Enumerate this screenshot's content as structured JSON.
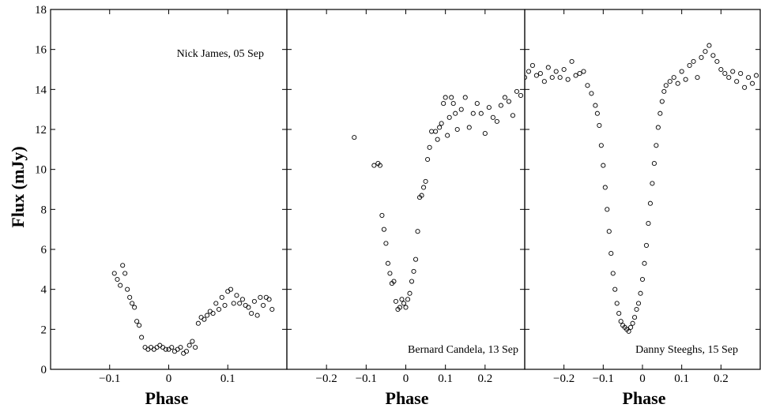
{
  "figure": {
    "ylabel": "Flux (mJy)",
    "xlabel": "Phase"
  },
  "chart_data": [
    {
      "type": "scatter",
      "title": "",
      "annotation": "Nick James, 05 Sep",
      "xlabel": "Phase",
      "ylabel": "Flux (mJy)",
      "xlim": [
        -0.2,
        0.2
      ],
      "ylim": [
        0,
        18
      ],
      "xticks": [
        -0.1,
        0,
        0.1
      ],
      "xtick_labels": [
        "−0.1",
        "0",
        "0.1"
      ],
      "yticks": [
        0,
        2,
        4,
        6,
        8,
        10,
        12,
        14,
        16,
        18
      ],
      "ytick_labels": [
        "0",
        "2",
        "4",
        "6",
        "8",
        "10",
        "12",
        "14",
        "16",
        "18"
      ],
      "marker": "open-circle",
      "series": [
        {
          "x": [
            -0.092,
            -0.087,
            -0.082,
            -0.078,
            -0.074,
            -0.07,
            -0.066,
            -0.062,
            -0.058,
            -0.054,
            -0.05,
            -0.046,
            -0.04,
            -0.035,
            -0.03,
            -0.025,
            -0.02,
            -0.015,
            -0.01,
            -0.005,
            0.0,
            0.005,
            0.01,
            0.015,
            0.02,
            0.025,
            0.03,
            0.035,
            0.04,
            0.045,
            0.05,
            0.055,
            0.06,
            0.065,
            0.07,
            0.075,
            0.08,
            0.085,
            0.09,
            0.095,
            0.1,
            0.105,
            0.11,
            0.115,
            0.12,
            0.125,
            0.13,
            0.135,
            0.14,
            0.145,
            0.15,
            0.155,
            0.16,
            0.165,
            0.17,
            0.175
          ],
          "y": [
            4.8,
            4.5,
            4.2,
            5.2,
            4.8,
            4.0,
            3.6,
            3.3,
            3.1,
            2.4,
            2.2,
            1.6,
            1.1,
            1.0,
            1.1,
            1.0,
            1.1,
            1.2,
            1.1,
            1.0,
            1.0,
            1.1,
            0.9,
            1.0,
            1.1,
            0.8,
            0.9,
            1.2,
            1.4,
            1.1,
            2.3,
            2.6,
            2.5,
            2.7,
            2.9,
            2.8,
            3.3,
            3.0,
            3.6,
            3.2,
            3.9,
            4.0,
            3.3,
            3.7,
            3.3,
            3.5,
            3.2,
            3.1,
            2.8,
            3.4,
            2.7,
            3.6,
            3.2,
            3.6,
            3.5,
            3.0
          ]
        }
      ]
    },
    {
      "type": "scatter",
      "title": "",
      "annotation": "Bernard Candela, 13 Sep",
      "xlabel": "Phase",
      "xlim": [
        -0.3,
        0.3
      ],
      "ylim": [
        0,
        18
      ],
      "xticks": [
        -0.2,
        -0.1,
        0,
        0.1,
        0.2
      ],
      "xtick_labels": [
        "−0.2",
        "−0.1",
        "0",
        "0.1",
        "0.2"
      ],
      "marker": "open-circle",
      "series": [
        {
          "x": [
            -0.13,
            -0.08,
            -0.07,
            -0.065,
            -0.06,
            -0.055,
            -0.05,
            -0.045,
            -0.04,
            -0.035,
            -0.03,
            -0.025,
            -0.02,
            -0.015,
            -0.01,
            -0.005,
            0.0,
            0.005,
            0.01,
            0.015,
            0.02,
            0.025,
            0.03,
            0.035,
            0.04,
            0.045,
            0.05,
            0.055,
            0.06,
            0.065,
            0.075,
            0.08,
            0.085,
            0.09,
            0.095,
            0.1,
            0.105,
            0.11,
            0.115,
            0.12,
            0.125,
            0.13,
            0.14,
            0.15,
            0.16,
            0.17,
            0.18,
            0.19,
            0.2,
            0.21,
            0.22,
            0.23,
            0.24,
            0.25,
            0.26,
            0.27,
            0.28,
            0.29
          ],
          "y": [
            11.6,
            10.2,
            10.3,
            10.2,
            7.7,
            7.0,
            6.3,
            5.3,
            4.8,
            4.3,
            4.4,
            3.4,
            3.0,
            3.1,
            3.5,
            3.3,
            3.1,
            3.5,
            3.8,
            4.4,
            4.9,
            5.5,
            6.9,
            8.6,
            8.7,
            9.1,
            9.4,
            10.5,
            11.1,
            11.9,
            11.9,
            11.5,
            12.1,
            12.3,
            13.3,
            13.6,
            11.7,
            12.6,
            13.6,
            13.3,
            12.8,
            12.0,
            13.0,
            13.6,
            12.1,
            12.8,
            13.3,
            12.8,
            11.8,
            13.1,
            12.6,
            12.4,
            13.2,
            13.6,
            13.4,
            12.7,
            13.9,
            13.7
          ]
        }
      ]
    },
    {
      "type": "scatter",
      "title": "",
      "annotation": "Danny Steeghs, 15 Sep",
      "xlabel": "Phase",
      "xlim": [
        -0.3,
        0.3
      ],
      "ylim": [
        0,
        18
      ],
      "xticks": [
        -0.2,
        -0.1,
        0,
        0.1,
        0.2
      ],
      "xtick_labels": [
        "−0.2",
        "−0.1",
        "0",
        "0.1",
        "0.2"
      ],
      "marker": "open-circle",
      "description_of_data": "dense eclipse light curve: flux ~14.5-15.5 mJy out of eclipse, minimum ~2 mJy at phase -0.03",
      "series": [
        {
          "x": [
            -0.3,
            -0.29,
            -0.28,
            -0.27,
            -0.26,
            -0.25,
            -0.24,
            -0.23,
            -0.22,
            -0.21,
            -0.2,
            -0.19,
            -0.18,
            -0.17,
            -0.16,
            -0.15,
            -0.14,
            -0.13,
            -0.12,
            -0.115,
            -0.11,
            -0.105,
            -0.1,
            -0.095,
            -0.09,
            -0.085,
            -0.08,
            -0.075,
            -0.07,
            -0.065,
            -0.06,
            -0.055,
            -0.05,
            -0.045,
            -0.04,
            -0.035,
            -0.03,
            -0.025,
            -0.02,
            -0.015,
            -0.01,
            -0.005,
            0.0,
            0.005,
            0.01,
            0.015,
            0.02,
            0.025,
            0.03,
            0.035,
            0.04,
            0.045,
            0.05,
            0.055,
            0.06,
            0.07,
            0.08,
            0.09,
            0.1,
            0.11,
            0.12,
            0.13,
            0.14,
            0.15,
            0.16,
            0.17,
            0.18,
            0.19,
            0.2,
            0.21,
            0.22,
            0.23,
            0.24,
            0.25,
            0.26,
            0.27,
            0.28,
            0.29
          ],
          "y": [
            14.6,
            14.9,
            15.2,
            14.7,
            14.8,
            14.4,
            15.1,
            14.6,
            14.9,
            14.6,
            15.0,
            14.5,
            15.4,
            14.7,
            14.8,
            14.9,
            14.2,
            13.8,
            13.2,
            12.8,
            12.2,
            11.2,
            10.2,
            9.1,
            8.0,
            6.9,
            5.8,
            4.8,
            4.0,
            3.3,
            2.8,
            2.4,
            2.2,
            2.1,
            2.0,
            1.9,
            2.1,
            2.3,
            2.6,
            3.0,
            3.3,
            3.8,
            4.5,
            5.3,
            6.2,
            7.3,
            8.3,
            9.3,
            10.3,
            11.2,
            12.1,
            12.8,
            13.4,
            13.9,
            14.2,
            14.4,
            14.6,
            14.3,
            14.9,
            14.5,
            15.2,
            15.4,
            14.6,
            15.6,
            15.9,
            16.2,
            15.7,
            15.4,
            15.0,
            14.8,
            14.6,
            14.9,
            14.4,
            14.8,
            14.1,
            14.6,
            14.3,
            14.7
          ]
        }
      ]
    }
  ]
}
